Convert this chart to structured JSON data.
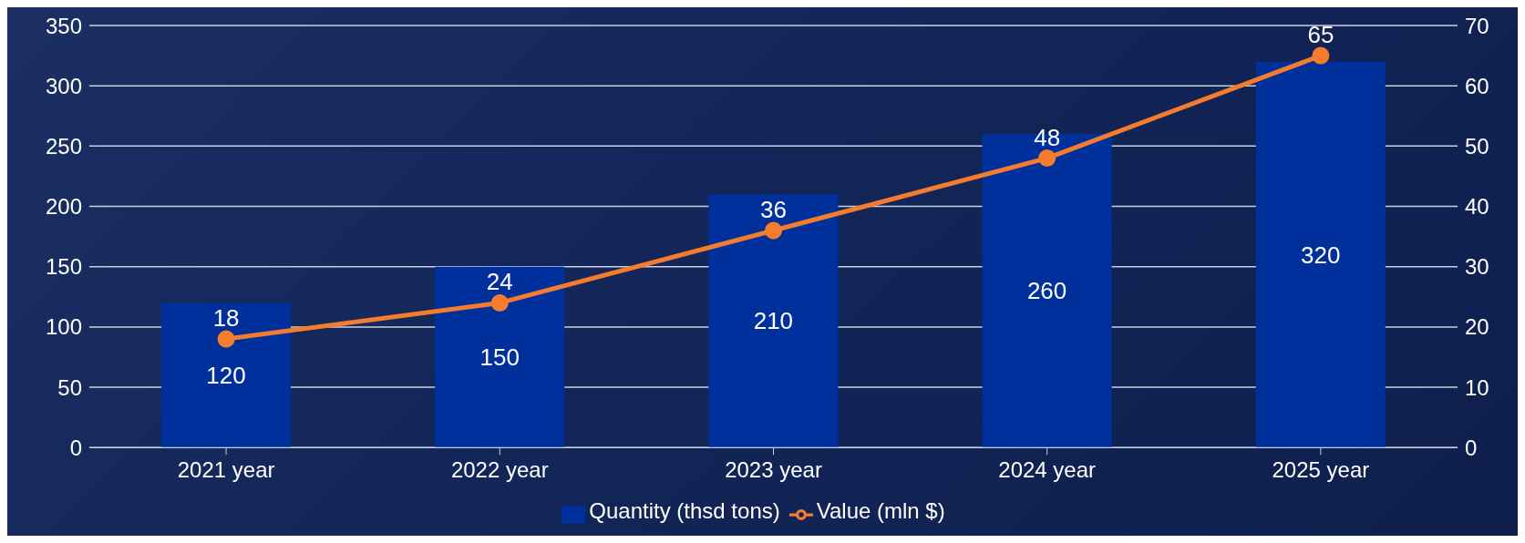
{
  "chart_data": {
    "type": "bar",
    "categories": [
      "2021 year",
      "2022 year",
      "2023 year",
      "2024 year",
      "2025 year"
    ],
    "series": [
      {
        "name": "Quantity (thsd tons)",
        "color": "#00309c",
        "values": [
          120,
          150,
          210,
          260,
          320
        ]
      },
      {
        "name": "Value (mln $)",
        "type": "line",
        "axis": "y2",
        "color": "#f47c2c",
        "values": [
          18,
          24,
          36,
          48,
          65
        ]
      }
    ],
    "ylim": [
      0,
      350
    ],
    "yticks": [
      0,
      50,
      100,
      150,
      200,
      250,
      300,
      350
    ],
    "y2lim": [
      0,
      70
    ],
    "y2ticks": [
      0,
      10,
      20,
      30,
      40,
      50,
      60,
      70
    ],
    "grid": "y",
    "legend": "bottom",
    "data_labels": true,
    "marker": "circle",
    "line_style": "solid"
  }
}
